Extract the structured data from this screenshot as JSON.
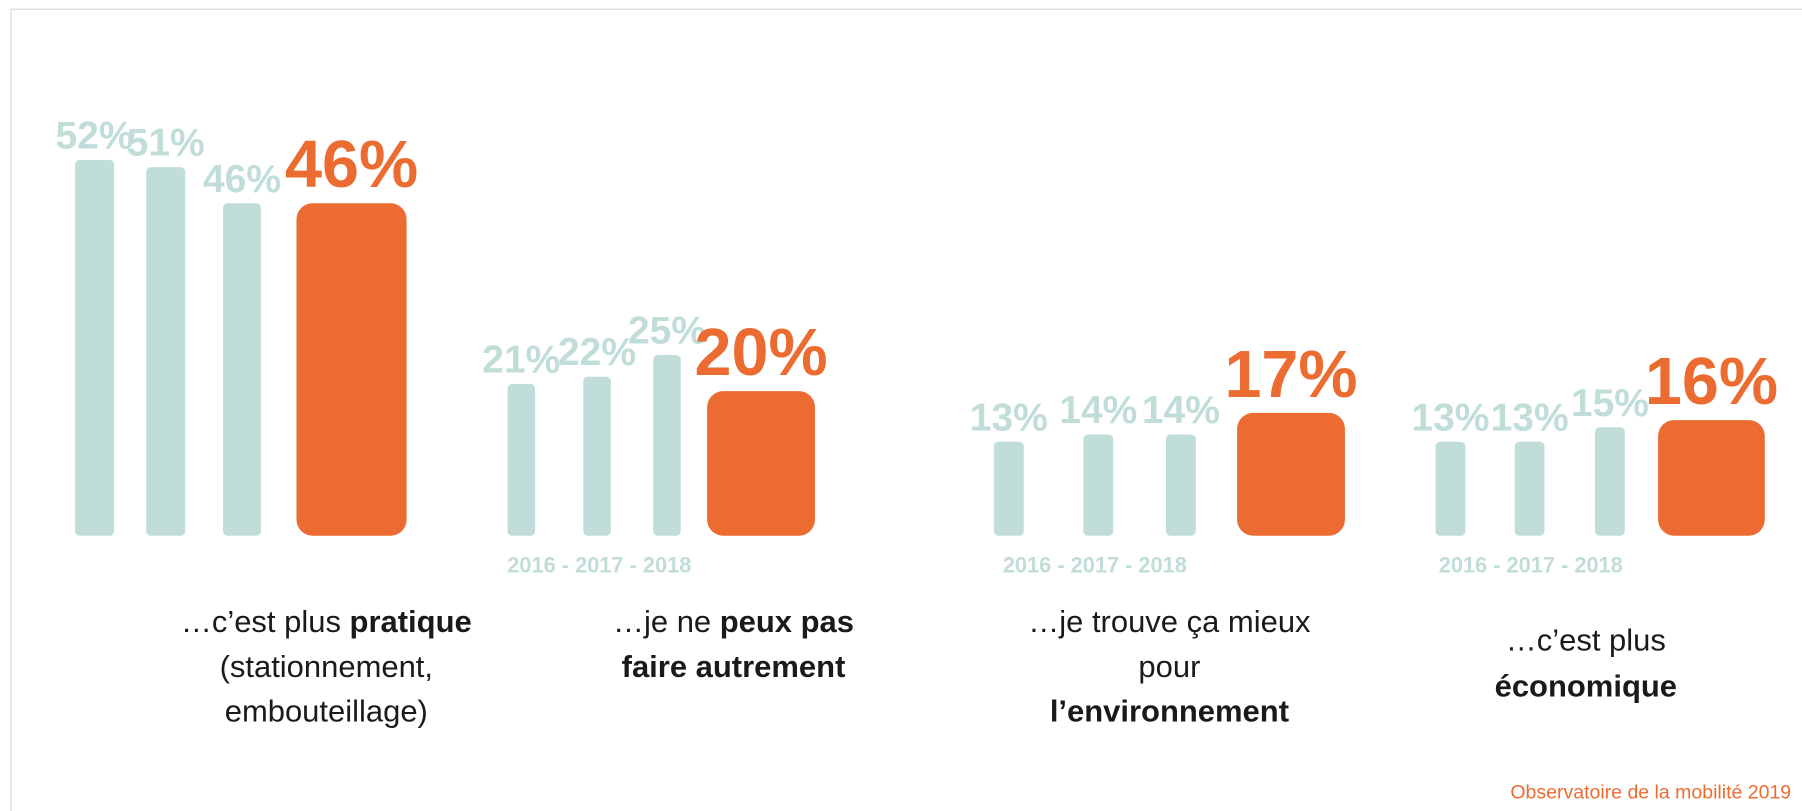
{
  "chart_data": {
    "type": "bar",
    "colors": {
      "past": "#c0ddd9",
      "current": "#eb6b30"
    },
    "groups": [
      {
        "values": [
          52,
          51,
          46,
          46
        ],
        "value_labels": [
          "52%",
          "51%",
          "46%",
          "46%"
        ],
        "years": null,
        "caption": [
          [
            {
              "text": "…c’est plus "
            },
            {
              "text": "pratique",
              "bold": true
            }
          ],
          [
            {
              "text": "(stationnement,"
            }
          ],
          [
            {
              "text": "embouteillage)"
            }
          ]
        ]
      },
      {
        "values": [
          21,
          22,
          25,
          20
        ],
        "value_labels": [
          "21%",
          "22%",
          "25%",
          "20%"
        ],
        "years": "2016 - 2017 - 2018",
        "caption": [
          [
            {
              "text": "…je ne "
            },
            {
              "text": "peux pas",
              "bold": true
            }
          ],
          [
            {
              "text": "faire autrement",
              "bold": true
            }
          ]
        ]
      },
      {
        "values": [
          13,
          14,
          14,
          17
        ],
        "value_labels": [
          "13%",
          "14%",
          "14%",
          "17%"
        ],
        "years": "2016 - 2017 - 2018",
        "caption": [
          [
            {
              "text": "…je trouve ça mieux"
            }
          ],
          [
            {
              "text": "pour"
            }
          ],
          [
            {
              "text": "l’environnement",
              "bold": true
            }
          ]
        ]
      },
      {
        "values": [
          13,
          13,
          15,
          16
        ],
        "value_labels": [
          "13%",
          "13%",
          "15%",
          "16%"
        ],
        "years": "2016 - 2017 - 2018",
        "caption": [
          [
            {
              "text": "…c’est plus"
            }
          ],
          [
            {
              "text": "économique",
              "bold": true
            }
          ]
        ]
      }
    ],
    "source": "Observatoire de la mobilité 2019"
  }
}
